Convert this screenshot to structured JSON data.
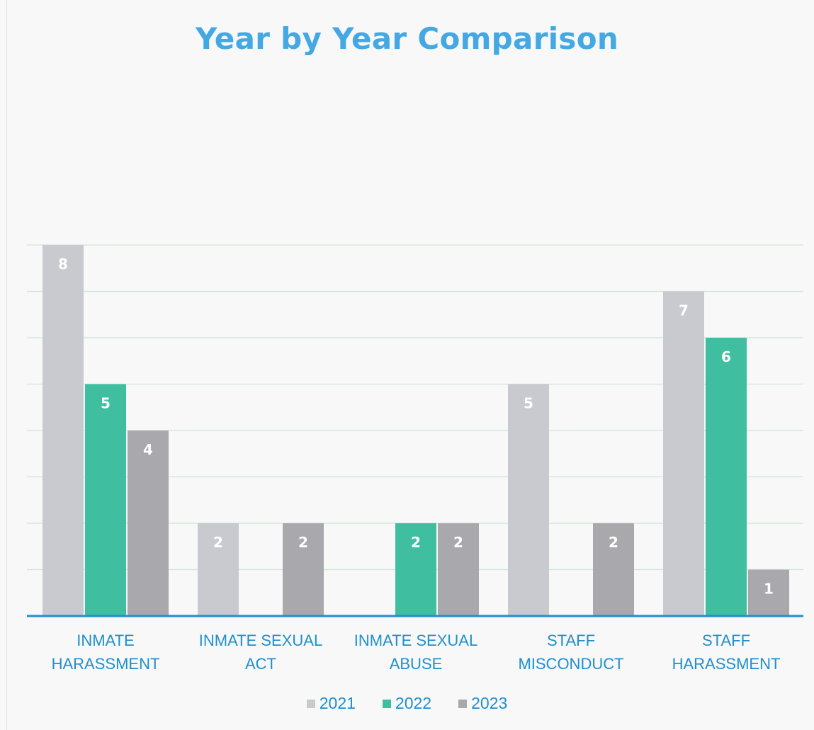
{
  "chart_data": {
    "type": "bar",
    "title": "Year by Year Comparison",
    "categories": [
      [
        "INMATE",
        "HARASSMENT"
      ],
      [
        "INMATE SEXUAL",
        "ACT"
      ],
      [
        "INMATE SEXUAL",
        "ABUSE"
      ],
      [
        "STAFF",
        "MISCONDUCT"
      ],
      [
        "STAFF",
        "HARASSMENT"
      ]
    ],
    "series": [
      {
        "name": "2021",
        "color": "#c9cacf",
        "values": [
          8,
          2,
          null,
          5,
          7
        ]
      },
      {
        "name": "2022",
        "color": "#3fbfa0",
        "values": [
          5,
          null,
          2,
          null,
          6
        ]
      },
      {
        "name": "2023",
        "color": "#a9a9ad",
        "values": [
          4,
          2,
          2,
          2,
          1
        ]
      }
    ],
    "ylim": [
      0,
      12
    ],
    "grid": true,
    "data_labels": true,
    "legend_position": "bottom",
    "colors": {
      "title": "#43a8e3",
      "category_text": "#1f8fd0",
      "axis_line": "#1f8fd0",
      "gridline": "#cfe4d8"
    }
  }
}
